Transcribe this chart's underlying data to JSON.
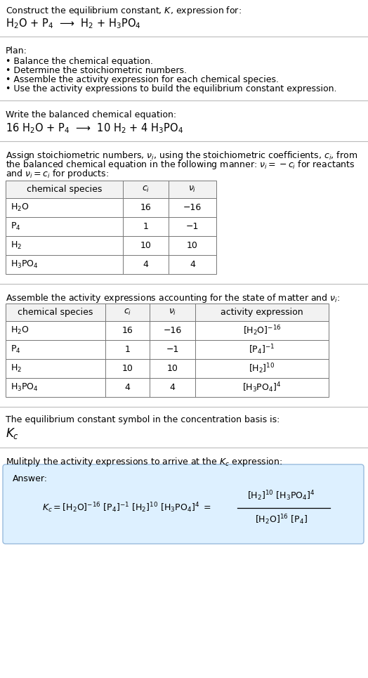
{
  "title_line1": "Construct the equilibrium constant, $K$, expression for:",
  "reaction_unbalanced": "H$_2$O + P$_4$  ⟶  H$_2$ + H$_3$PO$_4$",
  "plan_header": "Plan:",
  "plan_items": [
    "• Balance the chemical equation.",
    "• Determine the stoichiometric numbers.",
    "• Assemble the activity expression for each chemical species.",
    "• Use the activity expressions to build the equilibrium constant expression."
  ],
  "balanced_header": "Write the balanced chemical equation:",
  "reaction_balanced": "16 H$_2$O + P$_4$  ⟶  10 H$_2$ + 4 H$_3$PO$_4$",
  "stoich_header_lines": [
    "Assign stoichiometric numbers, $\\nu_i$, using the stoichiometric coefficients, $c_i$, from",
    "the balanced chemical equation in the following manner: $\\nu_i = -c_i$ for reactants",
    "and $\\nu_i = c_i$ for products:"
  ],
  "table1_headers": [
    "chemical species",
    "$c_i$",
    "$\\nu_i$"
  ],
  "table1_rows": [
    [
      "H$_2$O",
      "16",
      "−16"
    ],
    [
      "P$_4$",
      "1",
      "−1"
    ],
    [
      "H$_2$",
      "10",
      "10"
    ],
    [
      "H$_3$PO$_4$",
      "4",
      "4"
    ]
  ],
  "activity_header": "Assemble the activity expressions accounting for the state of matter and $\\nu_i$:",
  "table2_headers": [
    "chemical species",
    "$c_i$",
    "$\\nu_i$",
    "activity expression"
  ],
  "table2_rows": [
    [
      "H$_2$O",
      "16",
      "−16",
      "[H$_2$O]$^{-16}$"
    ],
    [
      "P$_4$",
      "1",
      "−1",
      "[P$_4$]$^{-1}$"
    ],
    [
      "H$_2$",
      "10",
      "10",
      "[H$_2$]$^{10}$"
    ],
    [
      "H$_3$PO$_4$",
      "4",
      "4",
      "[H$_3$PO$_4$]$^{4}$"
    ]
  ],
  "kc_symbol_header": "The equilibrium constant symbol in the concentration basis is:",
  "kc_symbol": "$K_c$",
  "multiply_header": "Mulitply the activity expressions to arrive at the $K_c$ expression:",
  "answer_label": "Answer:",
  "bg_color": "#ffffff",
  "answer_box_bg": "#ddf0ff",
  "answer_box_border": "#99bbdd",
  "separator_color": "#bbbbbb",
  "text_color": "#000000",
  "font_size": 9.0
}
